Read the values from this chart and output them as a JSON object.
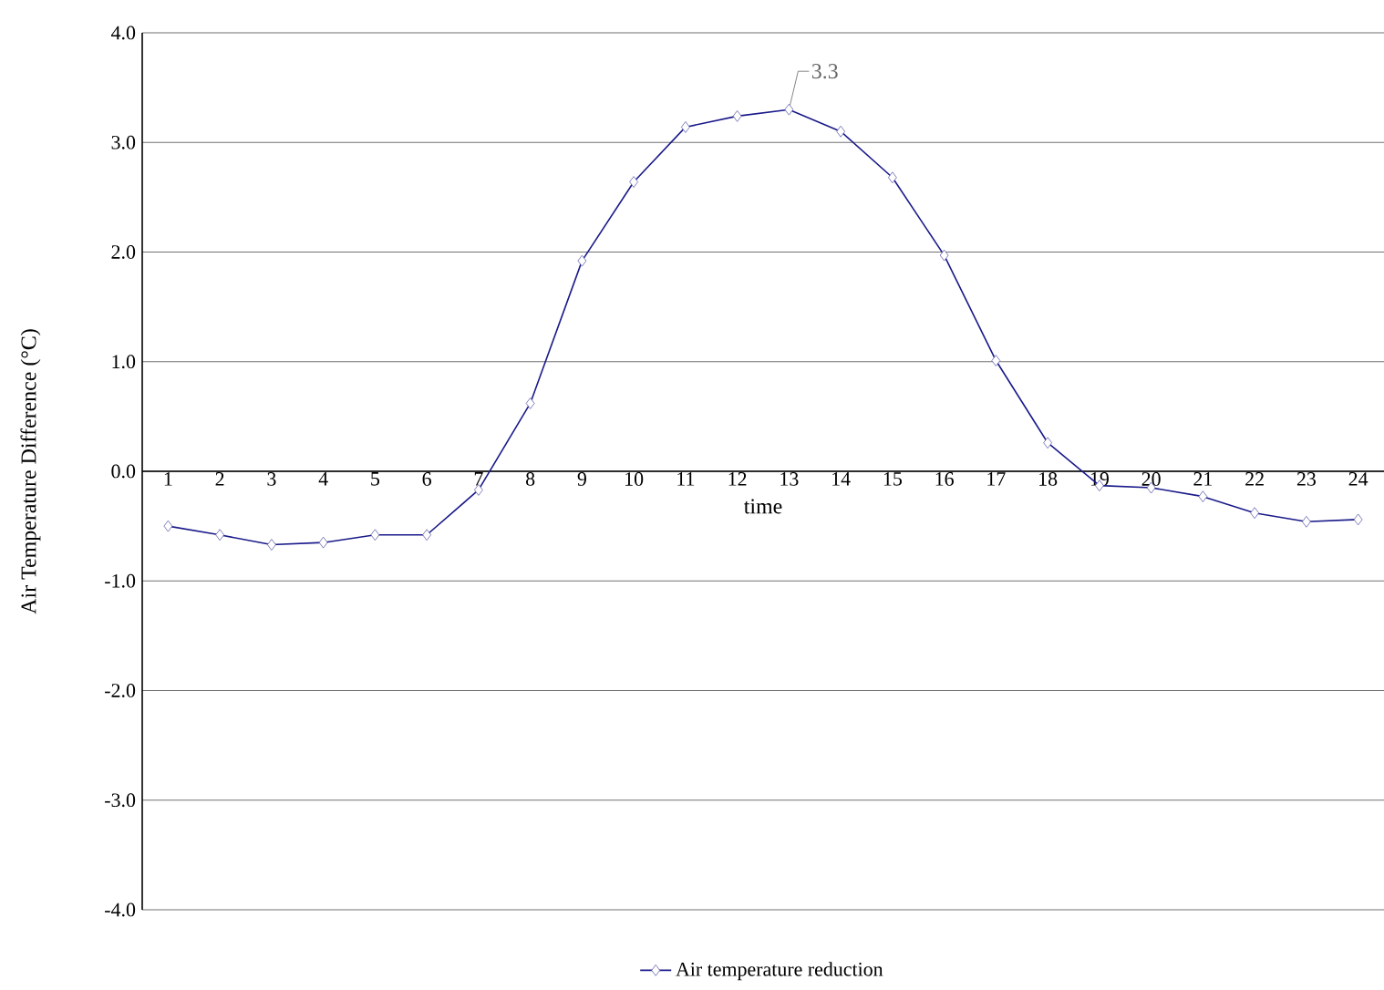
{
  "chart_data": {
    "type": "line",
    "xlabel": "time",
    "ylabel": "Air Temperature Difference (°C)",
    "categories": [
      "1",
      "2",
      "3",
      "4",
      "5",
      "6",
      "7",
      "8",
      "9",
      "10",
      "11",
      "12",
      "13",
      "14",
      "15",
      "16",
      "17",
      "18",
      "19",
      "20",
      "21",
      "22",
      "23",
      "24"
    ],
    "series": [
      {
        "name": "Air temperature reduction",
        "color": "#1a1a8a",
        "values": [
          -0.5,
          -0.58,
          -0.67,
          -0.65,
          -0.58,
          -0.58,
          -0.17,
          0.62,
          1.92,
          2.64,
          3.14,
          3.24,
          3.3,
          3.1,
          2.68,
          1.97,
          1.01,
          0.26,
          -0.13,
          -0.15,
          -0.23,
          -0.38,
          -0.46,
          -0.44
        ]
      }
    ],
    "ylim": [
      -4,
      4
    ],
    "yticks": [
      {
        "value": -4,
        "label": "-4.0"
      },
      {
        "value": -3,
        "label": "-3.0"
      },
      {
        "value": -2,
        "label": "-2.0"
      },
      {
        "value": -1,
        "label": "-1.0"
      },
      {
        "value": 0,
        "label": "0.0"
      },
      {
        "value": 1,
        "label": "1.0"
      },
      {
        "value": 2,
        "label": "2.0"
      },
      {
        "value": 3,
        "label": "3.0"
      },
      {
        "value": 4,
        "label": "4.0"
      }
    ],
    "grid": "y",
    "legend": "bottom",
    "marker": "diamond",
    "line_style": "solid",
    "annotations": [
      {
        "text": "3.3",
        "x": "13",
        "y": 3.3
      }
    ]
  }
}
